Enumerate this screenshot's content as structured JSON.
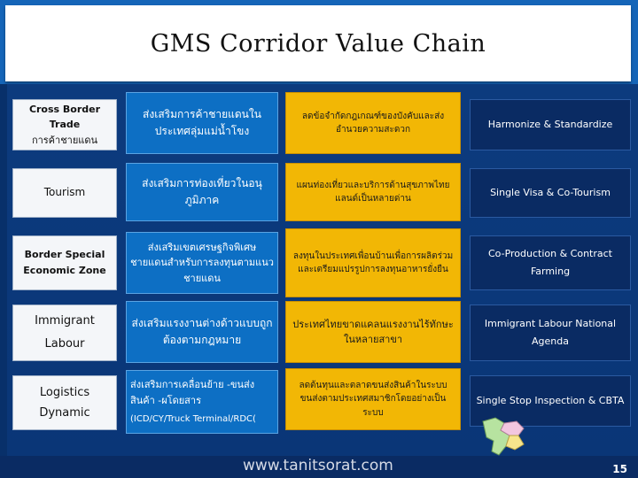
{
  "title": "GMS Corridor Value Chain",
  "rows": [
    {
      "col1": [
        "Cross Border Trade",
        "การค้าชายแดน"
      ],
      "col2": "ส่งเสริมการค้าชายแดนในประเทศลุ่มแม่น้ำโขง",
      "col3": "ลดข้อจำกัดกฎเกณฑ์ของบังคับและส่งอำนวยความสะดวก",
      "col4": "Harmonize & Standardize"
    },
    {
      "col1": [
        "Tourism"
      ],
      "col2": "ส่งเสริมการท่องเที่ยวในอนุภูมิภาค",
      "col3": "แผนท่องเที่ยวและบริการด้านสุขภาพไทยแลนด์เป็นหลายด่าน",
      "col4": "Single Visa & Co-Tourism"
    },
    {
      "col1": [
        "Border Special",
        "Economic Zone"
      ],
      "col2": "ส่งเสริมเขตเศรษฐกิจพิเศษชายแดนสำหรับการลงทุนตามแนวชายแดน",
      "col3": "ลงทุนในประเทศเพื่อนบ้านเพื่อการผลิตร่วมและเตรียมแปรรูปการลงทุนอาหารยั่งยืน",
      "col4": "Co-Production & Contract Farming"
    },
    {
      "col1": [
        "Immigrant",
        "Labour"
      ],
      "col2": "ส่งเสริมแรงงานต่างด้าวแบบถูกต้องตามกฎหมาย",
      "col3": "ประเทศไทยขาดแคลนแรงงานไร้ทักษะในหลายสาขา",
      "col4": "Immigrant Labour National Agenda"
    },
    {
      "col1": [
        "Logistics",
        "Dynamic"
      ],
      "col2a": "ส่งเสริมการเคลื่อนย้าย -ขนส่งสินค้า -ผโดยสาร",
      "col2b": "(ICD/CY/Truck Terminal/RDC(",
      "col3": "ลดต้นทุนและตลาดขนส่งสินค้าในระบบขนส่งตามประเทศสมาชิกโดยอย่างเป็นระบบ",
      "col4": "Single Stop Inspection & CBTA"
    }
  ],
  "footer": {
    "url": "www.tanitsorat.com",
    "page_number": "15"
  },
  "colors": {
    "band": "#0c3b7e",
    "blue_cell": "#0d6fc4",
    "yellow_cell": "#f2b705",
    "navy_cell": "#0a2b63",
    "title_bar": "#1565b8"
  }
}
